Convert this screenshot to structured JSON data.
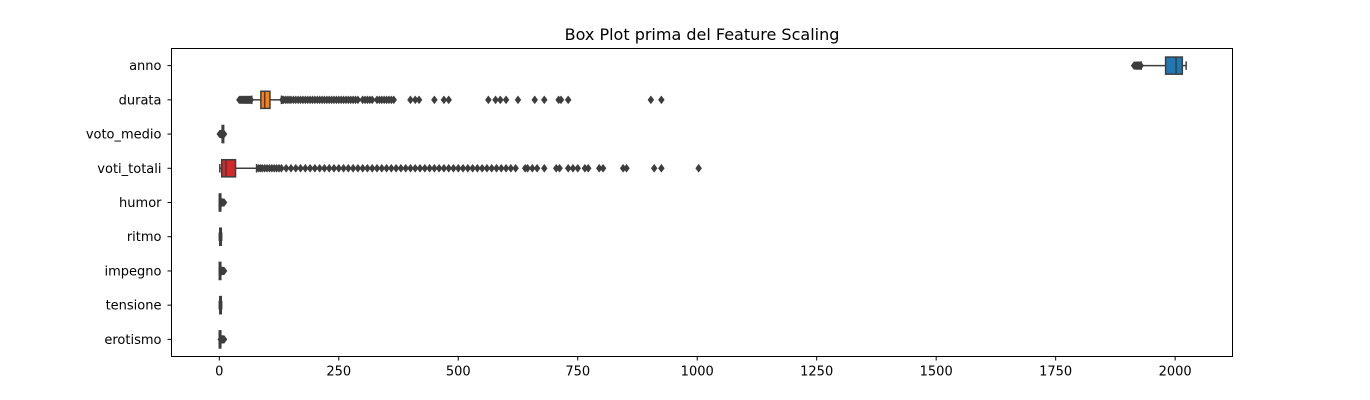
{
  "chart_data": {
    "type": "boxplot",
    "orientation": "horizontal",
    "title": "Box Plot prima del Feature Scaling",
    "xlabel": "",
    "ylabel": "",
    "xlim": [
      -100,
      2120
    ],
    "xticks": [
      0,
      250,
      500,
      750,
      1000,
      1250,
      1500,
      1750,
      2000
    ],
    "grid": false,
    "categories": [
      "anno",
      "durata",
      "voto_medio",
      "voti_totali",
      "humor",
      "ritmo",
      "impegno",
      "tensione",
      "erotismo"
    ],
    "series": [
      {
        "label": "anno",
        "color": "#1f77b4",
        "whisker_low": 1929,
        "q1": 1980,
        "median": 2002,
        "q3": 2015,
        "whisker_high": 2023,
        "outliers": [
          1914,
          1916,
          1918,
          1919,
          1920,
          1921,
          1922,
          1923,
          1924,
          1925,
          1926,
          1927,
          1928
        ]
      },
      {
        "label": "durata",
        "color": "#ff7f0e",
        "whisker_low": 68,
        "q1": 87,
        "median": 95,
        "q3": 106,
        "whisker_high": 130,
        "outliers": [
          42,
          44,
          46,
          48,
          50,
          52,
          54,
          56,
          58,
          60,
          62,
          64,
          66,
          132,
          134,
          138,
          142,
          146,
          150,
          155,
          160,
          165,
          170,
          175,
          180,
          185,
          190,
          195,
          200,
          205,
          210,
          215,
          220,
          225,
          230,
          235,
          240,
          245,
          250,
          255,
          260,
          265,
          270,
          275,
          280,
          285,
          290,
          300,
          305,
          310,
          315,
          320,
          330,
          335,
          340,
          345,
          350,
          355,
          360,
          365,
          400,
          410,
          418,
          450,
          470,
          480,
          563,
          578,
          588,
          600,
          625,
          660,
          680,
          710,
          715,
          730,
          903,
          925
        ]
      },
      {
        "label": "voto_medio",
        "color": "#2ca02c",
        "whisker_low": 5,
        "q1": 6,
        "median": 6.6,
        "q3": 7,
        "whisker_high": 8,
        "outliers": [
          1,
          2,
          3,
          4,
          9,
          10
        ]
      },
      {
        "label": "voti_totali",
        "color": "#d62728",
        "whisker_low": 1,
        "q1": 5,
        "median": 14,
        "q3": 34,
        "whisker_high": 78,
        "outliers": [
          82,
          86,
          90,
          95,
          100,
          105,
          110,
          115,
          120,
          125,
          130,
          140,
          150,
          160,
          170,
          180,
          190,
          200,
          210,
          220,
          230,
          240,
          250,
          260,
          270,
          280,
          290,
          300,
          310,
          320,
          330,
          340,
          350,
          360,
          370,
          380,
          390,
          400,
          410,
          420,
          430,
          440,
          450,
          460,
          470,
          480,
          490,
          500,
          510,
          520,
          530,
          540,
          550,
          560,
          570,
          580,
          590,
          600,
          610,
          620,
          640,
          645,
          655,
          665,
          680,
          705,
          712,
          730,
          740,
          750,
          765,
          772,
          795,
          803,
          845,
          852,
          910,
          925,
          1003
        ]
      },
      {
        "label": "humor",
        "color": "#9467bd",
        "whisker_low": 0,
        "q1": 0,
        "median": 1,
        "q3": 2,
        "whisker_high": 4,
        "outliers": [
          5,
          6,
          7,
          8,
          9,
          10
        ]
      },
      {
        "label": "ritmo",
        "color": "#8c564b",
        "whisker_low": 0,
        "q1": 1,
        "median": 2,
        "q3": 3,
        "whisker_high": 5,
        "outliers": []
      },
      {
        "label": "impegno",
        "color": "#e377c2",
        "whisker_low": 0,
        "q1": 0,
        "median": 1,
        "q3": 2,
        "whisker_high": 5,
        "outliers": [
          6,
          7,
          8,
          9,
          10
        ]
      },
      {
        "label": "tensione",
        "color": "#7f7f7f",
        "whisker_low": 0,
        "q1": 1,
        "median": 2,
        "q3": 3,
        "whisker_high": 5,
        "outliers": []
      },
      {
        "label": "erotismo",
        "color": "#bcbd22",
        "whisker_low": 0,
        "q1": 0,
        "median": 0,
        "q3": 1,
        "whisker_high": 2,
        "outliers": [
          3,
          4,
          5,
          6,
          7,
          8,
          9,
          10
        ]
      }
    ]
  }
}
